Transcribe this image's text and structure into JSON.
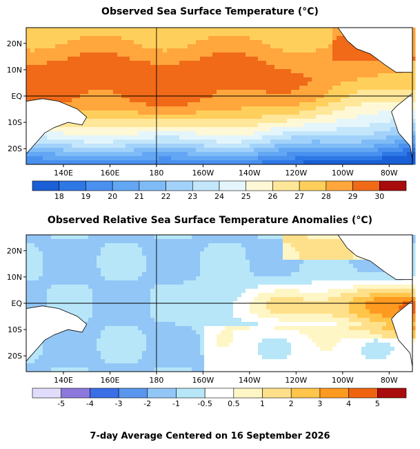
{
  "footer": "7-day Average Centered on 16 September 2026",
  "chart_data": [
    {
      "type": "heatmap",
      "title": "Observed Sea Surface Temperature (°C)",
      "xlabel": "",
      "ylabel": "",
      "x_ticks": [
        "140E",
        "160E",
        "180",
        "160W",
        "140W",
        "120W",
        "100W",
        "80W"
      ],
      "y_ticks": [
        "20N",
        "10N",
        "EQ",
        "10S",
        "20S"
      ],
      "x_range": [
        "124E",
        "70W"
      ],
      "y_range": [
        "26S",
        "26N"
      ],
      "reference_lines": [
        "EQ",
        "180"
      ],
      "colorbar": {
        "labels": [
          "18",
          "19",
          "20",
          "21",
          "22",
          "23",
          "24",
          "25",
          "26",
          "27",
          "28",
          "29",
          "30"
        ],
        "colors": [
          "#1a5fd6",
          "#2e78e6",
          "#4a90ef",
          "#62a6f4",
          "#7fbcf7",
          "#a2d2fa",
          "#c3e6fb",
          "#e4f6fc",
          "#fff8d6",
          "#ffe79a",
          "#ffcf5c",
          "#ffa63c",
          "#f06a18",
          "#a80c0c"
        ]
      }
    },
    {
      "type": "heatmap",
      "title": "Observed Relative Sea Surface Temperature Anomalies (°C)",
      "xlabel": "",
      "ylabel": "",
      "x_ticks": [
        "140E",
        "160E",
        "180",
        "160W",
        "140W",
        "120W",
        "100W",
        "80W"
      ],
      "y_ticks": [
        "20N",
        "10N",
        "EQ",
        "10S",
        "20S"
      ],
      "x_range": [
        "124E",
        "70W"
      ],
      "y_range": [
        "26S",
        "26N"
      ],
      "reference_lines": [
        "EQ",
        "180"
      ],
      "colorbar": {
        "labels": [
          "-5",
          "-4",
          "-3",
          "-2",
          "-1",
          "-0.5",
          "0.5",
          "1",
          "2",
          "3",
          "4",
          "5"
        ],
        "colors": [
          "#e0dcfc",
          "#8c78dc",
          "#3c6ee6",
          "#5a96ee",
          "#92c6f6",
          "#b6e6f8",
          "#ffffff",
          "#fff6c6",
          "#ffe08a",
          "#ffc44a",
          "#ff9a20",
          "#f06410",
          "#a80c0c"
        ]
      }
    }
  ]
}
